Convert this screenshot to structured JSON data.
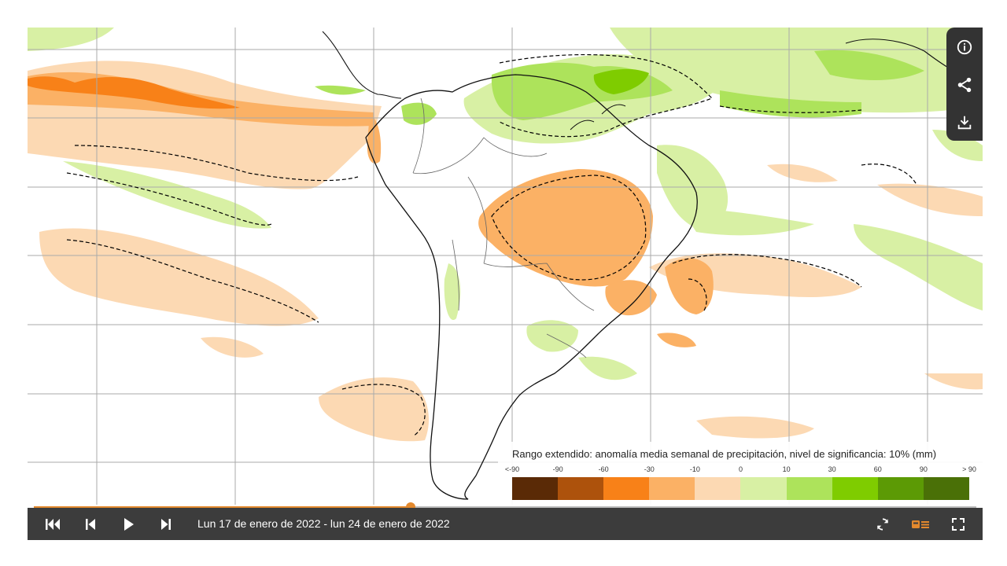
{
  "map": {
    "region": "América del Sur",
    "anomaly_legend": {
      "title": "Rango extendido: anomalía media semanal de precipitación, nivel de significancia: 10% (mm)",
      "tick_labels": [
        "<-90",
        "-90",
        "-60",
        "-30",
        "-10",
        "0",
        "10",
        "30",
        "60",
        "90",
        "> 90"
      ],
      "colors": [
        "#5a2a06",
        "#ad520c",
        "#f88118",
        "#fbb165",
        "#fcd9b3",
        "#d8f0a4",
        "#ade35b",
        "#7fcc00",
        "#5c9a05",
        "#4a7007"
      ]
    },
    "colors": {
      "land_outline": "#555555",
      "coast": "#111111",
      "grid": "#aaaaaa",
      "significance_contour": "#000000"
    }
  },
  "side_tools": {
    "info_icon": "info-icon",
    "share_icon": "share-icon",
    "download_icon": "download-icon"
  },
  "timeline": {
    "progress": 0.4
  },
  "controls": {
    "date_range": "Lun 17 de enero de 2022 - lun 24 de enero de 2022",
    "icons": [
      "skip-to-start-icon",
      "step-back-icon",
      "play-icon",
      "step-forward-icon",
      "loop-icon",
      "legend-toggle-icon",
      "fullscreen-icon"
    ],
    "accent": "#e3892e"
  }
}
